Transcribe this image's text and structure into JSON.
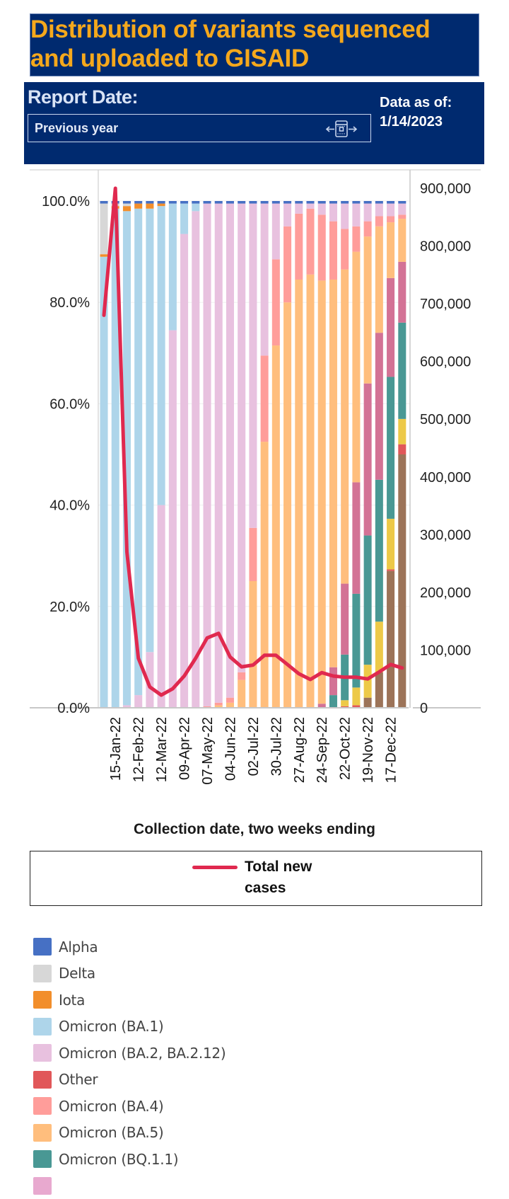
{
  "header": {
    "title_line1": "Distribution of variants sequenced",
    "title_line2": "and uploaded to GISAID"
  },
  "filter": {
    "label": "Report Date:",
    "selected": "Previous year",
    "icon": "date-range-slider-icon",
    "data_as_of_label": "Data as of:",
    "data_as_of_value": "1/14/2023"
  },
  "colors": {
    "header_bg": "#002a6f",
    "title_text": "#f5a81c",
    "line": "#e0294f"
  },
  "chart_data": {
    "type": "bar",
    "stacked": true,
    "xlabel": "Collection date, two weeks ending",
    "ylabel_left": "",
    "ylabel_right": "",
    "ylim_left": [
      0,
      100
    ],
    "ylim_right": [
      0,
      900000
    ],
    "left_ticks": [
      "0.0%",
      "20.0%",
      "40.0%",
      "60.0%",
      "80.0%",
      "100.0%"
    ],
    "right_ticks": [
      "0",
      "100,000",
      "200,000",
      "300,000",
      "400,000",
      "500,000",
      "600,000",
      "700,000",
      "800,000",
      "900,000"
    ],
    "x_tick_labels": [
      "",
      "15-Jan-22",
      "",
      "12-Feb-22",
      "",
      "12-Mar-22",
      "",
      "09-Apr-22",
      "",
      "07-May-22",
      "",
      "04-Jun-22",
      "",
      "02-Jul-22",
      "",
      "30-Jul-22",
      "",
      "27-Aug-22",
      "",
      "24-Sep-22",
      "",
      "22-Oct-22",
      "",
      "19-Nov-22",
      "",
      "17-Dec-22",
      ""
    ],
    "series": [
      {
        "name": "",
        "color": "#9c7358",
        "values": [
          0,
          0,
          0,
          0,
          0,
          0,
          0,
          0,
          0,
          0,
          0,
          0,
          0,
          0,
          0,
          0,
          0,
          0,
          0,
          0,
          0,
          0,
          0,
          2,
          7,
          27,
          50
        ]
      },
      {
        "name": "Other",
        "color": "#e15759",
        "values": [
          0,
          0,
          0,
          0,
          0,
          0,
          0,
          0,
          0,
          0,
          0,
          0,
          0,
          0,
          0,
          0,
          0,
          0,
          0,
          0,
          0,
          0.3,
          0.5,
          0,
          0,
          0.3,
          2
        ]
      },
      {
        "name": "",
        "color": "#edc948",
        "values": [
          0,
          0,
          0,
          0,
          0,
          0,
          0,
          0,
          0,
          0,
          0,
          0,
          0,
          0,
          0,
          0,
          0,
          0,
          0,
          0,
          0,
          1.2,
          3.5,
          6.5,
          10,
          10,
          5
        ]
      },
      {
        "name": "Omicron (BQ.1.1)",
        "color": "#499894",
        "values": [
          0,
          0,
          0,
          0,
          0,
          0,
          0,
          0,
          0,
          0,
          0,
          0,
          0,
          0,
          0,
          0,
          0,
          0,
          0,
          0,
          2.5,
          9,
          18.5,
          25.5,
          28,
          28,
          19
        ]
      },
      {
        "name": "",
        "color": "#d37295",
        "values": [
          0,
          0,
          0,
          0,
          0,
          0,
          0,
          0,
          0,
          0,
          0,
          0,
          0,
          0,
          0,
          0,
          0,
          0,
          0,
          0.8,
          5.5,
          14,
          22,
          30,
          29,
          19.5,
          12
        ]
      },
      {
        "name": "Omicron (BA.5)",
        "color": "#ffbe7d",
        "values": [
          0,
          0,
          0,
          0,
          0,
          0,
          0,
          0,
          0,
          0,
          0.5,
          1,
          5.5,
          25,
          52.5,
          71.5,
          80,
          84.5,
          85.5,
          83.5,
          76.5,
          62,
          45.5,
          29,
          21,
          11,
          8.5
        ]
      },
      {
        "name": "Omicron (BA.4)",
        "color": "#ff9d9a",
        "values": [
          0,
          0,
          0,
          0,
          0,
          0,
          0,
          0,
          0,
          0.3,
          0.5,
          1,
          1.5,
          10.5,
          17,
          17,
          15,
          13,
          13,
          13,
          11.5,
          8,
          5,
          3,
          2,
          1.2,
          0.8
        ]
      },
      {
        "name": "Omicron (BA.2, BA.2.12)",
        "color": "#e8c1df",
        "values": [
          0,
          0,
          0.5,
          2.5,
          11,
          40,
          74.5,
          93.5,
          98,
          99.2,
          98.5,
          97.5,
          92.5,
          64,
          30,
          11,
          4.5,
          2,
          1,
          2.2,
          3.5,
          5,
          4.5,
          3.5,
          2.5,
          2.5,
          2.2
        ]
      },
      {
        "name": "Omicron (BA.1)",
        "color": "#aed5ea",
        "values": [
          89,
          98.5,
          97.5,
          96,
          87.5,
          59,
          25,
          6,
          1.5,
          0,
          0,
          0,
          0,
          0,
          0,
          0,
          0,
          0,
          0,
          0,
          0,
          0,
          0,
          0,
          0,
          0,
          0
        ]
      },
      {
        "name": "Iota",
        "color": "#f28e2b",
        "values": [
          0.5,
          0.5,
          1,
          1,
          1,
          0.5,
          0,
          0,
          0,
          0,
          0,
          0,
          0,
          0,
          0,
          0,
          0,
          0,
          0,
          0,
          0,
          0,
          0,
          0,
          0,
          0,
          0
        ]
      },
      {
        "name": "Delta",
        "color": "#d7d7d7",
        "values": [
          10,
          0.5,
          0.5,
          0,
          0,
          0,
          0,
          0,
          0,
          0,
          0,
          0,
          0,
          0,
          0,
          0,
          0,
          0,
          0,
          0,
          0,
          0,
          0,
          0,
          0,
          0,
          0
        ]
      },
      {
        "name": "Alpha",
        "color": "#4670c4",
        "values": [
          0.5,
          0.5,
          0.5,
          0.5,
          0.5,
          0.5,
          0.5,
          0.5,
          0.5,
          0.5,
          0.5,
          0.5,
          0.5,
          0.5,
          0.5,
          0.5,
          0.5,
          0.5,
          0.5,
          0.5,
          0.5,
          0.5,
          0.5,
          0.5,
          0.5,
          0.5,
          0.5
        ]
      }
    ],
    "line_series": {
      "name": "Total new cases",
      "axis": "right",
      "color": "#e0294f",
      "values": [
        680000,
        900000,
        270000,
        86000,
        36000,
        22000,
        33000,
        55000,
        86000,
        121000,
        129000,
        88000,
        71000,
        74000,
        91000,
        91000,
        75000,
        59000,
        49000,
        61000,
        55000,
        53000,
        53000,
        50000,
        62000,
        75000,
        69000
      ]
    },
    "legend_line": {
      "label_line1": "Total new",
      "label_line2": "cases"
    },
    "legend_items": [
      {
        "name": "Alpha",
        "color": "#4670c4"
      },
      {
        "name": "Delta",
        "color": "#d7d7d7"
      },
      {
        "name": "Iota",
        "color": "#f28e2b"
      },
      {
        "name": "Omicron (BA.1)",
        "color": "#aed5ea"
      },
      {
        "name": "Omicron (BA.2, BA.2.12)",
        "color": "#e8c1df"
      },
      {
        "name": "Other",
        "color": "#e15759"
      },
      {
        "name": "Omicron (BA.4)",
        "color": "#ff9d9a"
      },
      {
        "name": "Omicron (BA.5)",
        "color": "#ffbe7d"
      },
      {
        "name": "Omicron (BQ.1.1)",
        "color": "#499894"
      },
      {
        "name": "",
        "color": "#e8a9cf"
      }
    ],
    "grid": true,
    "legend_position": "bottom"
  }
}
